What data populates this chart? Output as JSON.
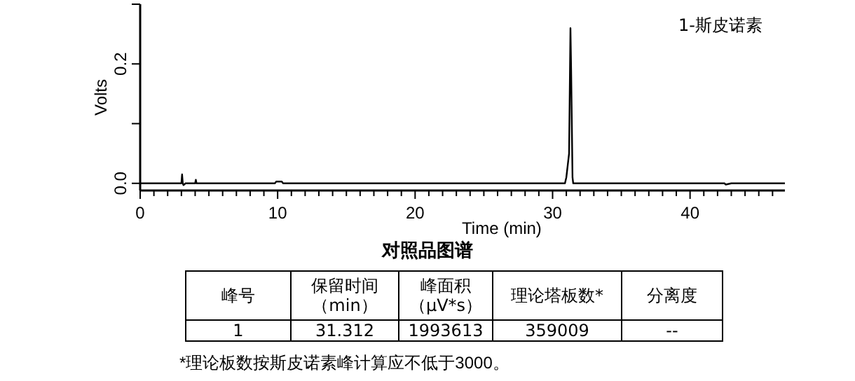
{
  "chart_data": {
    "type": "line",
    "xlabel": "Time (min)",
    "ylabel": "Volts",
    "xlim": [
      0,
      46.9
    ],
    "ylim": [
      -0.012,
      0.3
    ],
    "xticks": [
      0,
      {
        "value": 1,
        "label": null
      },
      {
        "value": 2,
        "label": null
      },
      {
        "value": 3,
        "label": null
      },
      {
        "value": 4,
        "label": null
      },
      {
        "value": 5,
        "label": null
      },
      {
        "value": 6,
        "label": null
      },
      {
        "value": 7,
        "label": null
      },
      {
        "value": 8,
        "label": null
      },
      {
        "value": 9,
        "label": null
      },
      10,
      {
        "value": 11,
        "label": null
      },
      {
        "value": 12,
        "label": null
      },
      {
        "value": 13,
        "label": null
      },
      {
        "value": 14,
        "label": null
      },
      {
        "value": 15,
        "label": null
      },
      {
        "value": 16,
        "label": null
      },
      {
        "value": 17,
        "label": null
      },
      {
        "value": 18,
        "label": null
      },
      {
        "value": 19,
        "label": null
      },
      20,
      {
        "value": 21,
        "label": null
      },
      {
        "value": 22,
        "label": null
      },
      {
        "value": 23,
        "label": null
      },
      {
        "value": 24,
        "label": null
      },
      {
        "value": 25,
        "label": null
      },
      {
        "value": 26,
        "label": null
      },
      {
        "value": 27,
        "label": null
      },
      {
        "value": 28,
        "label": null
      },
      {
        "value": 29,
        "label": null
      },
      30,
      {
        "value": 31,
        "label": null
      },
      {
        "value": 32,
        "label": null
      },
      {
        "value": 33,
        "label": null
      },
      {
        "value": 34,
        "label": null
      },
      {
        "value": 35,
        "label": null
      },
      {
        "value": 36,
        "label": null
      },
      {
        "value": 37,
        "label": null
      },
      {
        "value": 38,
        "label": null
      },
      {
        "value": 39,
        "label": null
      },
      40,
      {
        "value": 41,
        "label": null
      },
      {
        "value": 42,
        "label": null
      },
      {
        "value": 43,
        "label": null
      },
      {
        "value": 44,
        "label": null
      },
      {
        "value": 45,
        "label": null
      },
      {
        "value": 46,
        "label": null
      }
    ],
    "yticks": [
      {
        "value": 0,
        "label": "0.0"
      },
      {
        "value": 0.1,
        "label": null
      },
      0.2,
      {
        "value": 0.3,
        "label": null
      }
    ],
    "grid": false,
    "marker": "none",
    "line_style": "solid",
    "series": [
      {
        "name": "1-斯皮诺素",
        "color": "#000000",
        "x": [
          0,
          3.0,
          3.05,
          3.1,
          3.15,
          3.3,
          4.0,
          4.05,
          4.1,
          9.8,
          9.9,
          10.3,
          10.4,
          30.9,
          31.0,
          31.2,
          31.3,
          31.35,
          31.45,
          31.5,
          42.5,
          42.6,
          43.0,
          46.9
        ],
        "values": [
          0,
          0,
          0.015,
          0,
          -0.003,
          0,
          0,
          0.006,
          0,
          0,
          0.003,
          0.003,
          0,
          0,
          0.01,
          0.05,
          0.26,
          0.19,
          0.01,
          0,
          0,
          -0.002,
          0,
          0
        ]
      }
    ],
    "annotations": [
      "对照品图谱",
      "峰号",
      "保留时间（min）",
      "峰面积（μV*s）",
      "理论塔板数*",
      "分离度",
      "1",
      "31.312",
      "1993613",
      "359009",
      "--",
      "*理论板数按斯皮诺素峰计算应不低于3000。"
    ]
  }
}
